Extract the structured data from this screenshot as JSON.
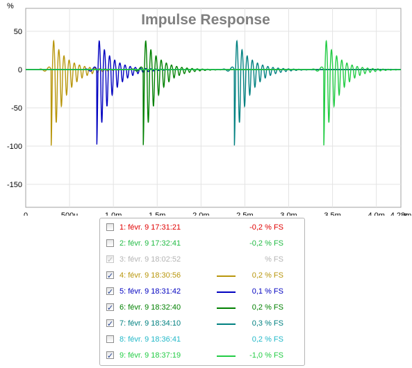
{
  "chart_data": {
    "type": "line",
    "title": "Impulse Response",
    "ylabel": "%",
    "xunit": "s",
    "xlim": [
      0,
      0.00428
    ],
    "ylim": [
      -180,
      80
    ],
    "x_ticks": [
      {
        "v": 0,
        "label": "0"
      },
      {
        "v": 0.0005,
        "label": "500u"
      },
      {
        "v": 0.001,
        "label": "1,0m"
      },
      {
        "v": 0.0015,
        "label": "1,5m"
      },
      {
        "v": 0.002,
        "label": "2,0m"
      },
      {
        "v": 0.0025,
        "label": "2,5m"
      },
      {
        "v": 0.003,
        "label": "3,0m"
      },
      {
        "v": 0.0035,
        "label": "3,5m"
      },
      {
        "v": 0.004,
        "label": "4,0m"
      },
      {
        "v": 0.00428,
        "label": "4,28m"
      }
    ],
    "y_ticks": [
      {
        "v": 50,
        "label": "50"
      },
      {
        "v": 0,
        "label": "0"
      },
      {
        "v": -50,
        "label": "-50"
      },
      {
        "v": -100,
        "label": "-100"
      },
      {
        "v": -150,
        "label": "-150"
      }
    ],
    "grid": true,
    "legend_position": "bottom",
    "series": [
      {
        "id": 4,
        "color": "#b8960c",
        "visible": true,
        "peak_time": 0.00029,
        "min": -100,
        "max": 39
      },
      {
        "id": 5,
        "color": "#0000c0",
        "visible": true,
        "peak_time": 0.00081,
        "min": -100,
        "max": 39
      },
      {
        "id": 6,
        "color": "#008000",
        "visible": true,
        "peak_time": 0.00134,
        "min": -100,
        "max": 39
      },
      {
        "id": 7,
        "color": "#008080",
        "visible": true,
        "peak_time": 0.00238,
        "min": -100,
        "max": 39
      },
      {
        "id": 9,
        "color": "#22cc44",
        "visible": true,
        "peak_time": 0.0034,
        "min": -100,
        "max": 39
      }
    ]
  },
  "legend": [
    {
      "label": "1: févr. 9 17:31:21",
      "value": "-0,2 % FS",
      "color": "#e00000",
      "checked": false,
      "disabled": false,
      "swatch": false
    },
    {
      "label": "2: févr. 9 17:32:41",
      "value": "-0,2 % FS",
      "color": "#22bb44",
      "checked": false,
      "disabled": false,
      "swatch": false
    },
    {
      "label": "3: févr. 9 18:02:52",
      "value": "% FS",
      "color": "#b4b4b4",
      "checked": true,
      "disabled": true,
      "swatch": false
    },
    {
      "label": "4: févr. 9 18:30:56",
      "value": "0,2 % FS",
      "color": "#b8960c",
      "checked": true,
      "disabled": false,
      "swatch": true
    },
    {
      "label": "5: févr. 9 18:31:42",
      "value": "0,1 % FS",
      "color": "#0000c0",
      "checked": true,
      "disabled": false,
      "swatch": true
    },
    {
      "label": "6: févr. 9 18:32:40",
      "value": "0,2 % FS",
      "color": "#008000",
      "checked": true,
      "disabled": false,
      "swatch": true
    },
    {
      "label": "7: févr. 9 18:34:10",
      "value": "0,3 % FS",
      "color": "#008080",
      "checked": true,
      "disabled": false,
      "swatch": true
    },
    {
      "label": "8: févr. 9 18:36:41",
      "value": "0,2 % FS",
      "color": "#22b8c8",
      "checked": false,
      "disabled": false,
      "swatch": false
    },
    {
      "label": "9: févr. 9 18:37:19",
      "value": "-1,0 % FS",
      "color": "#22cc44",
      "checked": true,
      "disabled": false,
      "swatch": true
    }
  ]
}
